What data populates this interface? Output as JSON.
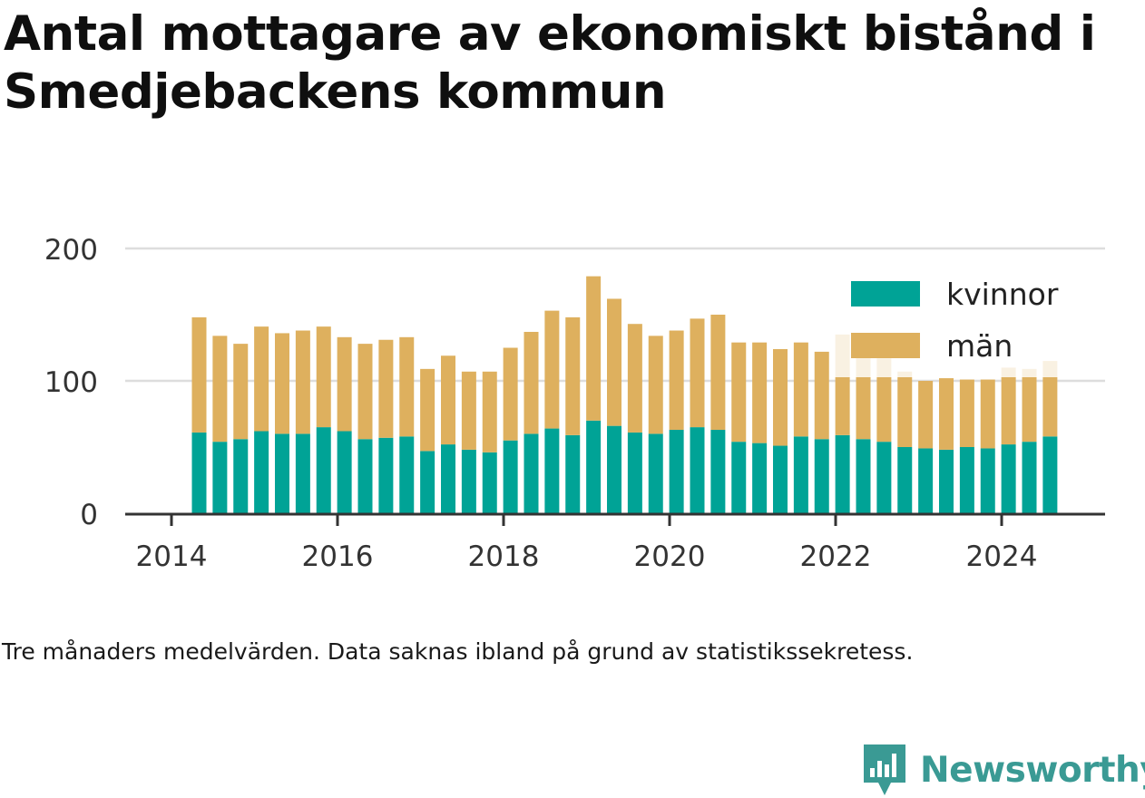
{
  "title": "Antal mottagare av ekonomiskt bistånd i Smedjebackens kommun",
  "note": "Tre månaders medelvärden. Data saknas ibland på grund av statistikssekretess.",
  "brand": "Newsworthy",
  "colors": {
    "kvinnor": "#00a396",
    "man": "#deb05e",
    "grid": "#dddddd",
    "axis": "#333333",
    "brand": "#3a9a94"
  },
  "chart_data": {
    "type": "bar",
    "stacked": true,
    "title": "Antal mottagare av ekonomiskt bistånd i Smedjebackens kommun",
    "x_ticks": [
      "2014",
      "2016",
      "2018",
      "2020",
      "2022",
      "2024"
    ],
    "y_ticks": [
      "0",
      "100",
      "200"
    ],
    "ylim": [
      0,
      200
    ],
    "grid": true,
    "legend_position": "top-right",
    "x_dates": [
      "2014-05",
      "2014-08",
      "2014-11",
      "2015-02",
      "2015-05",
      "2015-08",
      "2015-11",
      "2016-02",
      "2016-05",
      "2016-08",
      "2016-11",
      "2017-02",
      "2017-05",
      "2017-08",
      "2017-11",
      "2018-02",
      "2018-05",
      "2018-08",
      "2018-11",
      "2019-02",
      "2019-05",
      "2019-08",
      "2019-11",
      "2020-02",
      "2020-05",
      "2020-08",
      "2020-11",
      "2021-02",
      "2021-05",
      "2021-08",
      "2021-11",
      "2022-02",
      "2022-05",
      "2022-08",
      "2022-11",
      "2023-02",
      "2023-05",
      "2023-08",
      "2023-11",
      "2024-02",
      "2024-05",
      "2024-08"
    ],
    "series": [
      {
        "name": "kvinnor",
        "values": [
          61,
          54,
          56,
          62,
          60,
          60,
          65,
          62,
          56,
          57,
          58,
          47,
          52,
          48,
          46,
          55,
          60,
          64,
          59,
          70,
          66,
          61,
          60,
          63,
          65,
          63,
          54,
          53,
          51,
          58,
          56,
          59,
          56,
          54,
          50,
          49,
          48,
          50,
          49,
          52,
          54,
          58
        ]
      },
      {
        "name": "män",
        "values": [
          87,
          80,
          72,
          79,
          76,
          78,
          76,
          71,
          72,
          74,
          75,
          62,
          67,
          59,
          61,
          70,
          77,
          89,
          89,
          109,
          96,
          82,
          74,
          75,
          82,
          87,
          75,
          76,
          73,
          71,
          66,
          76,
          80,
          63,
          57,
          51,
          54,
          51,
          52,
          58,
          55,
          57
        ]
      }
    ]
  }
}
